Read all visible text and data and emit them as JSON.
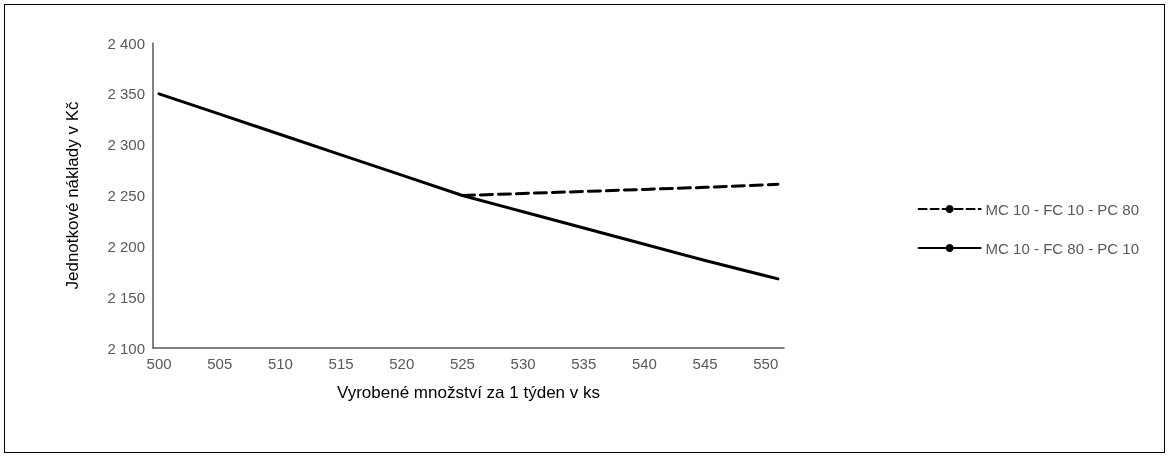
{
  "chart_data": {
    "type": "line",
    "xlabel": "Vyrobené množství za 1 týden v ks",
    "ylabel": "Jednotkové náklady v Kč",
    "xlim": [
      499.5,
      551.5
    ],
    "xticks": [
      500,
      505,
      510,
      515,
      520,
      525,
      530,
      535,
      540,
      545,
      550
    ],
    "ylim": [
      2100,
      2400
    ],
    "yticks": [
      {
        "value": 2100,
        "label": "2 100"
      },
      {
        "value": 2150,
        "label": "2 150"
      },
      {
        "value": 2200,
        "label": "2 200"
      },
      {
        "value": 2250,
        "label": "2 250"
      },
      {
        "value": 2300,
        "label": "2 300"
      },
      {
        "value": 2350,
        "label": "2 350"
      },
      {
        "value": 2400,
        "label": "2 400"
      }
    ],
    "grid": false,
    "legend": "right",
    "marker": "none",
    "series": [
      {
        "name": "MC 10 - FC 10 - PC 80",
        "color": "#000000",
        "line_style": "dashed",
        "x": [
          525,
          530,
          535,
          540,
          545,
          551
        ],
        "values": [
          2250,
          2252,
          2254,
          2256,
          2258,
          2261
        ]
      },
      {
        "name": "MC 10 - FC 80 - PC 10",
        "color": "#000000",
        "line_style": "solid",
        "x": [
          500,
          505,
          510,
          515,
          520,
          525,
          530,
          535,
          540,
          545,
          551
        ],
        "values": [
          2350,
          2330,
          2310,
          2290,
          2270,
          2250,
          2234,
          2218,
          2202,
          2186,
          2168
        ]
      }
    ]
  }
}
